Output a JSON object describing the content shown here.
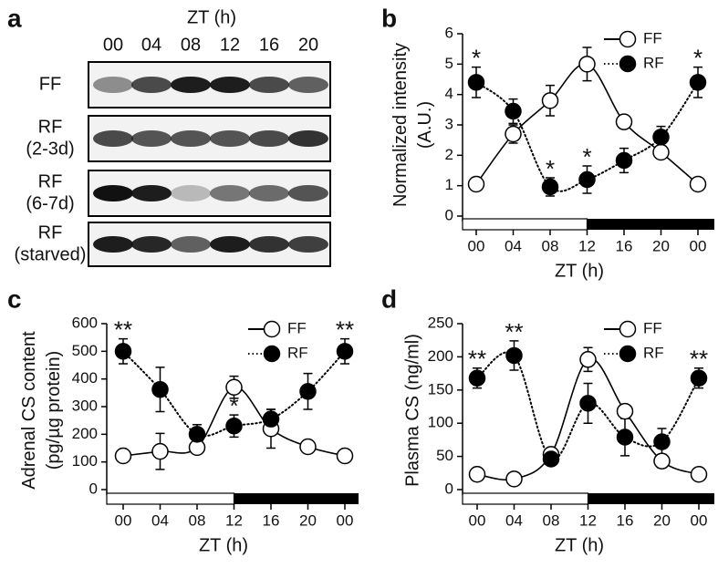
{
  "blot": {
    "label": "a",
    "title": "ZT (h)",
    "lanes": [
      "00",
      "04",
      "08",
      "12",
      "16",
      "20"
    ],
    "rows": [
      [
        "FF"
      ],
      [
        "RF",
        "(2-3d)"
      ],
      [
        "RF",
        "(6-7d)"
      ],
      [
        "RF",
        "(starved)"
      ]
    ]
  },
  "chart_data": [
    {
      "type": "line",
      "label": "b",
      "xlabel": "ZT (h)",
      "ylabel": [
        "Normalized intensity",
        "(A.U.)"
      ],
      "categories": [
        "00",
        "04",
        "08",
        "12",
        "16",
        "20",
        "00"
      ],
      "ylim": [
        0,
        6
      ],
      "yticks": [
        0,
        1,
        2,
        3,
        4,
        5,
        6
      ],
      "legend": "upper right",
      "significance": [
        "*",
        null,
        "*",
        "*",
        null,
        null,
        "*"
      ],
      "series": [
        {
          "name": "FF",
          "color": "#000000",
          "fill": "#ffffff",
          "line": "solid",
          "values": [
            1.05,
            2.7,
            3.8,
            5.0,
            3.1,
            2.1,
            1.05
          ],
          "errors": [
            0.05,
            0.3,
            0.5,
            0.55,
            0.15,
            0.2,
            0.05
          ]
        },
        {
          "name": "RF",
          "color": "#000000",
          "fill": "#000000",
          "line": "dotted",
          "values": [
            4.4,
            3.45,
            0.96,
            1.2,
            1.83,
            2.6,
            4.4
          ],
          "errors": [
            0.5,
            0.4,
            0.3,
            0.45,
            0.4,
            0.35,
            0.5
          ]
        }
      ]
    },
    {
      "type": "line",
      "label": "c",
      "xlabel": "ZT (h)",
      "ylabel": [
        "Adrenal CS content",
        "(pg/µg protein)"
      ],
      "categories": [
        "00",
        "04",
        "08",
        "12",
        "16",
        "20",
        "00"
      ],
      "ylim": [
        0,
        600
      ],
      "yticks": [
        0,
        100,
        200,
        300,
        400,
        500,
        600
      ],
      "legend": "upper right",
      "significance": [
        "**",
        null,
        null,
        "*",
        null,
        null,
        "**"
      ],
      "series": [
        {
          "name": "FF",
          "color": "#000000",
          "fill": "#ffffff",
          "line": "solid",
          "values": [
            122,
            138,
            152,
            370,
            220,
            155,
            122
          ],
          "errors": [
            20,
            65,
            20,
            40,
            70,
            15,
            20
          ]
        },
        {
          "name": "RF",
          "color": "#000000",
          "fill": "#000000",
          "line": "dotted",
          "values": [
            500,
            362,
            200,
            230,
            255,
            355,
            500
          ],
          "errors": [
            45,
            80,
            35,
            40,
            35,
            65,
            45
          ]
        }
      ]
    },
    {
      "type": "line",
      "label": "d",
      "xlabel": "ZT (h)",
      "ylabel": [
        "Plasma CS (ng/ml)"
      ],
      "categories": [
        "00",
        "04",
        "08",
        "12",
        "16",
        "20",
        "00"
      ],
      "ylim": [
        0,
        250
      ],
      "yticks": [
        0,
        50,
        100,
        150,
        200,
        250
      ],
      "legend": "upper right",
      "significance": [
        "**",
        "**",
        null,
        null,
        null,
        null,
        "**"
      ],
      "series": [
        {
          "name": "FF",
          "color": "#000000",
          "fill": "#ffffff",
          "line": "solid",
          "values": [
            23,
            16,
            53,
            196,
            118,
            43,
            23
          ],
          "errors": [
            3,
            3,
            8,
            18,
            10,
            10,
            3
          ]
        },
        {
          "name": "RF",
          "color": "#000000",
          "fill": "#000000",
          "line": "dotted",
          "values": [
            168,
            202,
            46,
            130,
            79,
            72,
            168
          ],
          "errors": [
            15,
            22,
            8,
            30,
            28,
            20,
            15
          ]
        }
      ]
    }
  ]
}
